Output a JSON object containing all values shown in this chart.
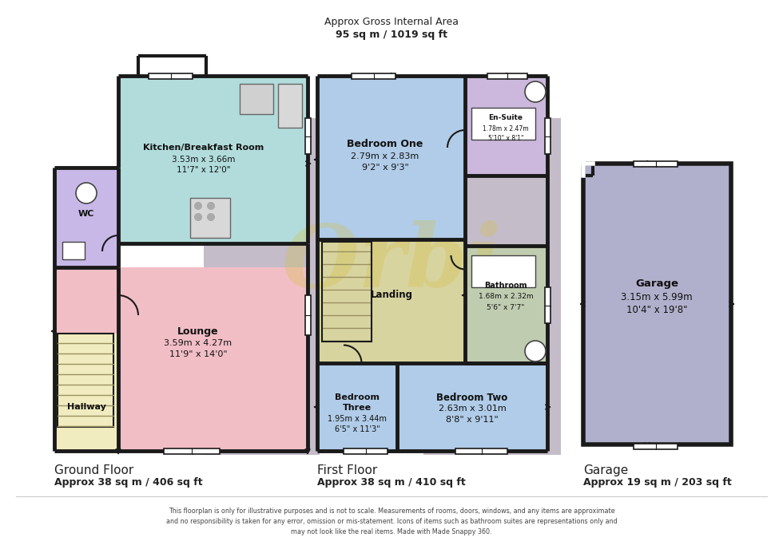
{
  "bg_color": "#ffffff",
  "title_line1": "Approx Gross Internal Area",
  "title_line2": "95 sq m / 1019 sq ft",
  "wall_color": "#1a1a1a",
  "ground_label": "Ground Floor",
  "ground_area": "Approx 38 sq m / 406 sq ft",
  "first_label": "First Floor",
  "first_area": "Approx 38 sq m / 410 sq ft",
  "garage_label": "Garage",
  "garage_area": "Approx 19 sq m / 203 sq ft",
  "disclaimer": "This floorplan is only for illustrative purposes and is not to scale. Measurements of rooms, doors, windows, and any items are approximate\nand no responsibility is taken for any error, omission or mis-statement. Icons of items such as bathroom suites are representations only and\nmay not look like the real items. Made with Made Snappy 360.",
  "color_kitchen": "#b2dcdc",
  "color_wc": "#c8b8e8",
  "color_lounge": "#f2bec6",
  "color_hallway": "#f0ecc0",
  "color_bed1": "#b0cce8",
  "color_ensuite": "#cbb8dc",
  "color_bathroom": "#c0ccb0",
  "color_landing": "#d8d4a0",
  "color_bed2": "#b0cce8",
  "color_bed3": "#b0cce8",
  "color_garage": "#b0b0cc",
  "color_shadow": "#c4bcc8",
  "color_wall": "#1a1a1a"
}
